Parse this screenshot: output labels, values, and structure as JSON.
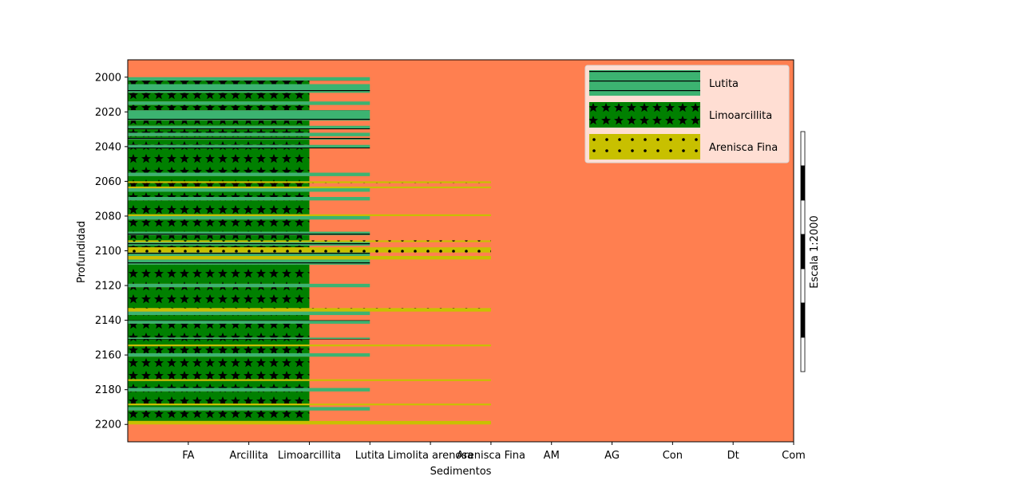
{
  "chart_data": {
    "type": "bar",
    "orientation": "horizontal",
    "xlabel": "Sedimentos",
    "ylabel": "Profundidad",
    "x_categories": [
      "FA",
      "Arcillita",
      "Limoarcillita",
      "Lutita",
      "Limolita arenosa",
      "Arenisca Fina",
      "AM",
      "AG",
      "Con",
      "Dt",
      "Com"
    ],
    "y_ticks": [
      2000,
      2020,
      2040,
      2060,
      2080,
      2100,
      2120,
      2140,
      2160,
      2180,
      2200
    ],
    "ylim": [
      1990,
      2210
    ],
    "y_inverted": true,
    "xlim": [
      0,
      11
    ],
    "background_color": "#ff7f50",
    "legend": {
      "placement": "upper-right",
      "entries": [
        {
          "label": "Lutita",
          "color": "#3cb371",
          "pattern": "horizontal-lines"
        },
        {
          "label": "Limoarcillita",
          "color": "#008000",
          "pattern": "stars"
        },
        {
          "label": "Arenisca Fina",
          "color": "#c8c000",
          "pattern": "dots"
        }
      ]
    },
    "lithologies": {
      "Limoarcillita": {
        "color": "#008000",
        "x_end": 3,
        "pattern": "stars"
      },
      "Lutita": {
        "color": "#3cb371",
        "x_end": 4,
        "pattern": "horizontal-lines"
      },
      "Arenisca Fina": {
        "color": "#c8c000",
        "x_end": 6,
        "pattern": "dots"
      }
    },
    "layers": [
      {
        "lith": "Lutita",
        "top": 2000,
        "base": 2002
      },
      {
        "lith": "Limoarcillita",
        "top": 2002,
        "base": 2004
      },
      {
        "lith": "Lutita",
        "top": 2004,
        "base": 2009
      },
      {
        "lith": "Limoarcillita",
        "top": 2009,
        "base": 2014
      },
      {
        "lith": "Lutita",
        "top": 2014,
        "base": 2016
      },
      {
        "lith": "Limoarcillita",
        "top": 2016,
        "base": 2019
      },
      {
        "lith": "Lutita",
        "top": 2019,
        "base": 2025
      },
      {
        "lith": "Limoarcillita",
        "top": 2025,
        "base": 2028
      },
      {
        "lith": "Lutita",
        "top": 2028,
        "base": 2030
      },
      {
        "lith": "Limoarcillita",
        "top": 2030,
        "base": 2032
      },
      {
        "lith": "Lutita",
        "top": 2032,
        "base": 2034
      },
      {
        "lith": "Limoarcillita",
        "top": 2034,
        "base": 2035
      },
      {
        "lith": "Lutita",
        "top": 2035,
        "base": 2036
      },
      {
        "lith": "Limoarcillita",
        "top": 2036,
        "base": 2039
      },
      {
        "lith": "Lutita",
        "top": 2039,
        "base": 2041
      },
      {
        "lith": "Limoarcillita",
        "top": 2041,
        "base": 2055
      },
      {
        "lith": "Lutita",
        "top": 2055,
        "base": 2057
      },
      {
        "lith": "Limoarcillita",
        "top": 2057,
        "base": 2060
      },
      {
        "lith": "Arenisca Fina",
        "top": 2060,
        "base": 2061
      },
      {
        "lith": "Limoarcillita",
        "top": 2061,
        "base": 2063
      },
      {
        "lith": "Arenisca Fina",
        "top": 2063,
        "base": 2064
      },
      {
        "lith": "Lutita",
        "top": 2064,
        "base": 2066
      },
      {
        "lith": "Limoarcillita",
        "top": 2066,
        "base": 2069
      },
      {
        "lith": "Lutita",
        "top": 2069,
        "base": 2071
      },
      {
        "lith": "Limoarcillita",
        "top": 2071,
        "base": 2079
      },
      {
        "lith": "Arenisca Fina",
        "top": 2079,
        "base": 2080
      },
      {
        "lith": "Lutita",
        "top": 2080,
        "base": 2082
      },
      {
        "lith": "Limoarcillita",
        "top": 2082,
        "base": 2089
      },
      {
        "lith": "Lutita",
        "top": 2089,
        "base": 2091
      },
      {
        "lith": "Limoarcillita",
        "top": 2091,
        "base": 2094
      },
      {
        "lith": "Arenisca Fina",
        "top": 2094,
        "base": 2095
      },
      {
        "lith": "Lutita",
        "top": 2095,
        "base": 2097
      },
      {
        "lith": "Limoarcillita",
        "top": 2097,
        "base": 2098
      },
      {
        "lith": "Arenisca Fina",
        "top": 2098,
        "base": 2101
      },
      {
        "lith": "Lutita",
        "top": 2101,
        "base": 2103
      },
      {
        "lith": "Arenisca Fina",
        "top": 2103,
        "base": 2105
      },
      {
        "lith": "Lutita",
        "top": 2105,
        "base": 2108
      },
      {
        "lith": "Limoarcillita",
        "top": 2108,
        "base": 2119
      },
      {
        "lith": "Lutita",
        "top": 2119,
        "base": 2121
      },
      {
        "lith": "Limoarcillita",
        "top": 2121,
        "base": 2133
      },
      {
        "lith": "Arenisca Fina",
        "top": 2133,
        "base": 2135
      },
      {
        "lith": "Lutita",
        "top": 2135,
        "base": 2137
      },
      {
        "lith": "Limoarcillita",
        "top": 2137,
        "base": 2140
      },
      {
        "lith": "Lutita",
        "top": 2140,
        "base": 2142
      },
      {
        "lith": "Limoarcillita",
        "top": 2142,
        "base": 2150
      },
      {
        "lith": "Lutita",
        "top": 2150,
        "base": 2151
      },
      {
        "lith": "Limoarcillita",
        "top": 2151,
        "base": 2154
      },
      {
        "lith": "Arenisca Fina",
        "top": 2154,
        "base": 2155
      },
      {
        "lith": "Limoarcillita",
        "top": 2155,
        "base": 2159
      },
      {
        "lith": "Lutita",
        "top": 2159,
        "base": 2161
      },
      {
        "lith": "Limoarcillita",
        "top": 2161,
        "base": 2174
      },
      {
        "lith": "Arenisca Fina",
        "top": 2174,
        "base": 2175
      },
      {
        "lith": "Limoarcillita",
        "top": 2175,
        "base": 2179
      },
      {
        "lith": "Lutita",
        "top": 2179,
        "base": 2181
      },
      {
        "lith": "Limoarcillita",
        "top": 2181,
        "base": 2188
      },
      {
        "lith": "Arenisca Fina",
        "top": 2188,
        "base": 2189
      },
      {
        "lith": "Limoarcillita",
        "top": 2189,
        "base": 2190
      },
      {
        "lith": "Lutita",
        "top": 2190,
        "base": 2192
      },
      {
        "lith": "Limoarcillita",
        "top": 2192,
        "base": 2198
      },
      {
        "lith": "Arenisca Fina",
        "top": 2198,
        "base": 2200
      }
    ],
    "scale_bar": {
      "label": "Escala 1:2000",
      "segments": 7
    }
  }
}
